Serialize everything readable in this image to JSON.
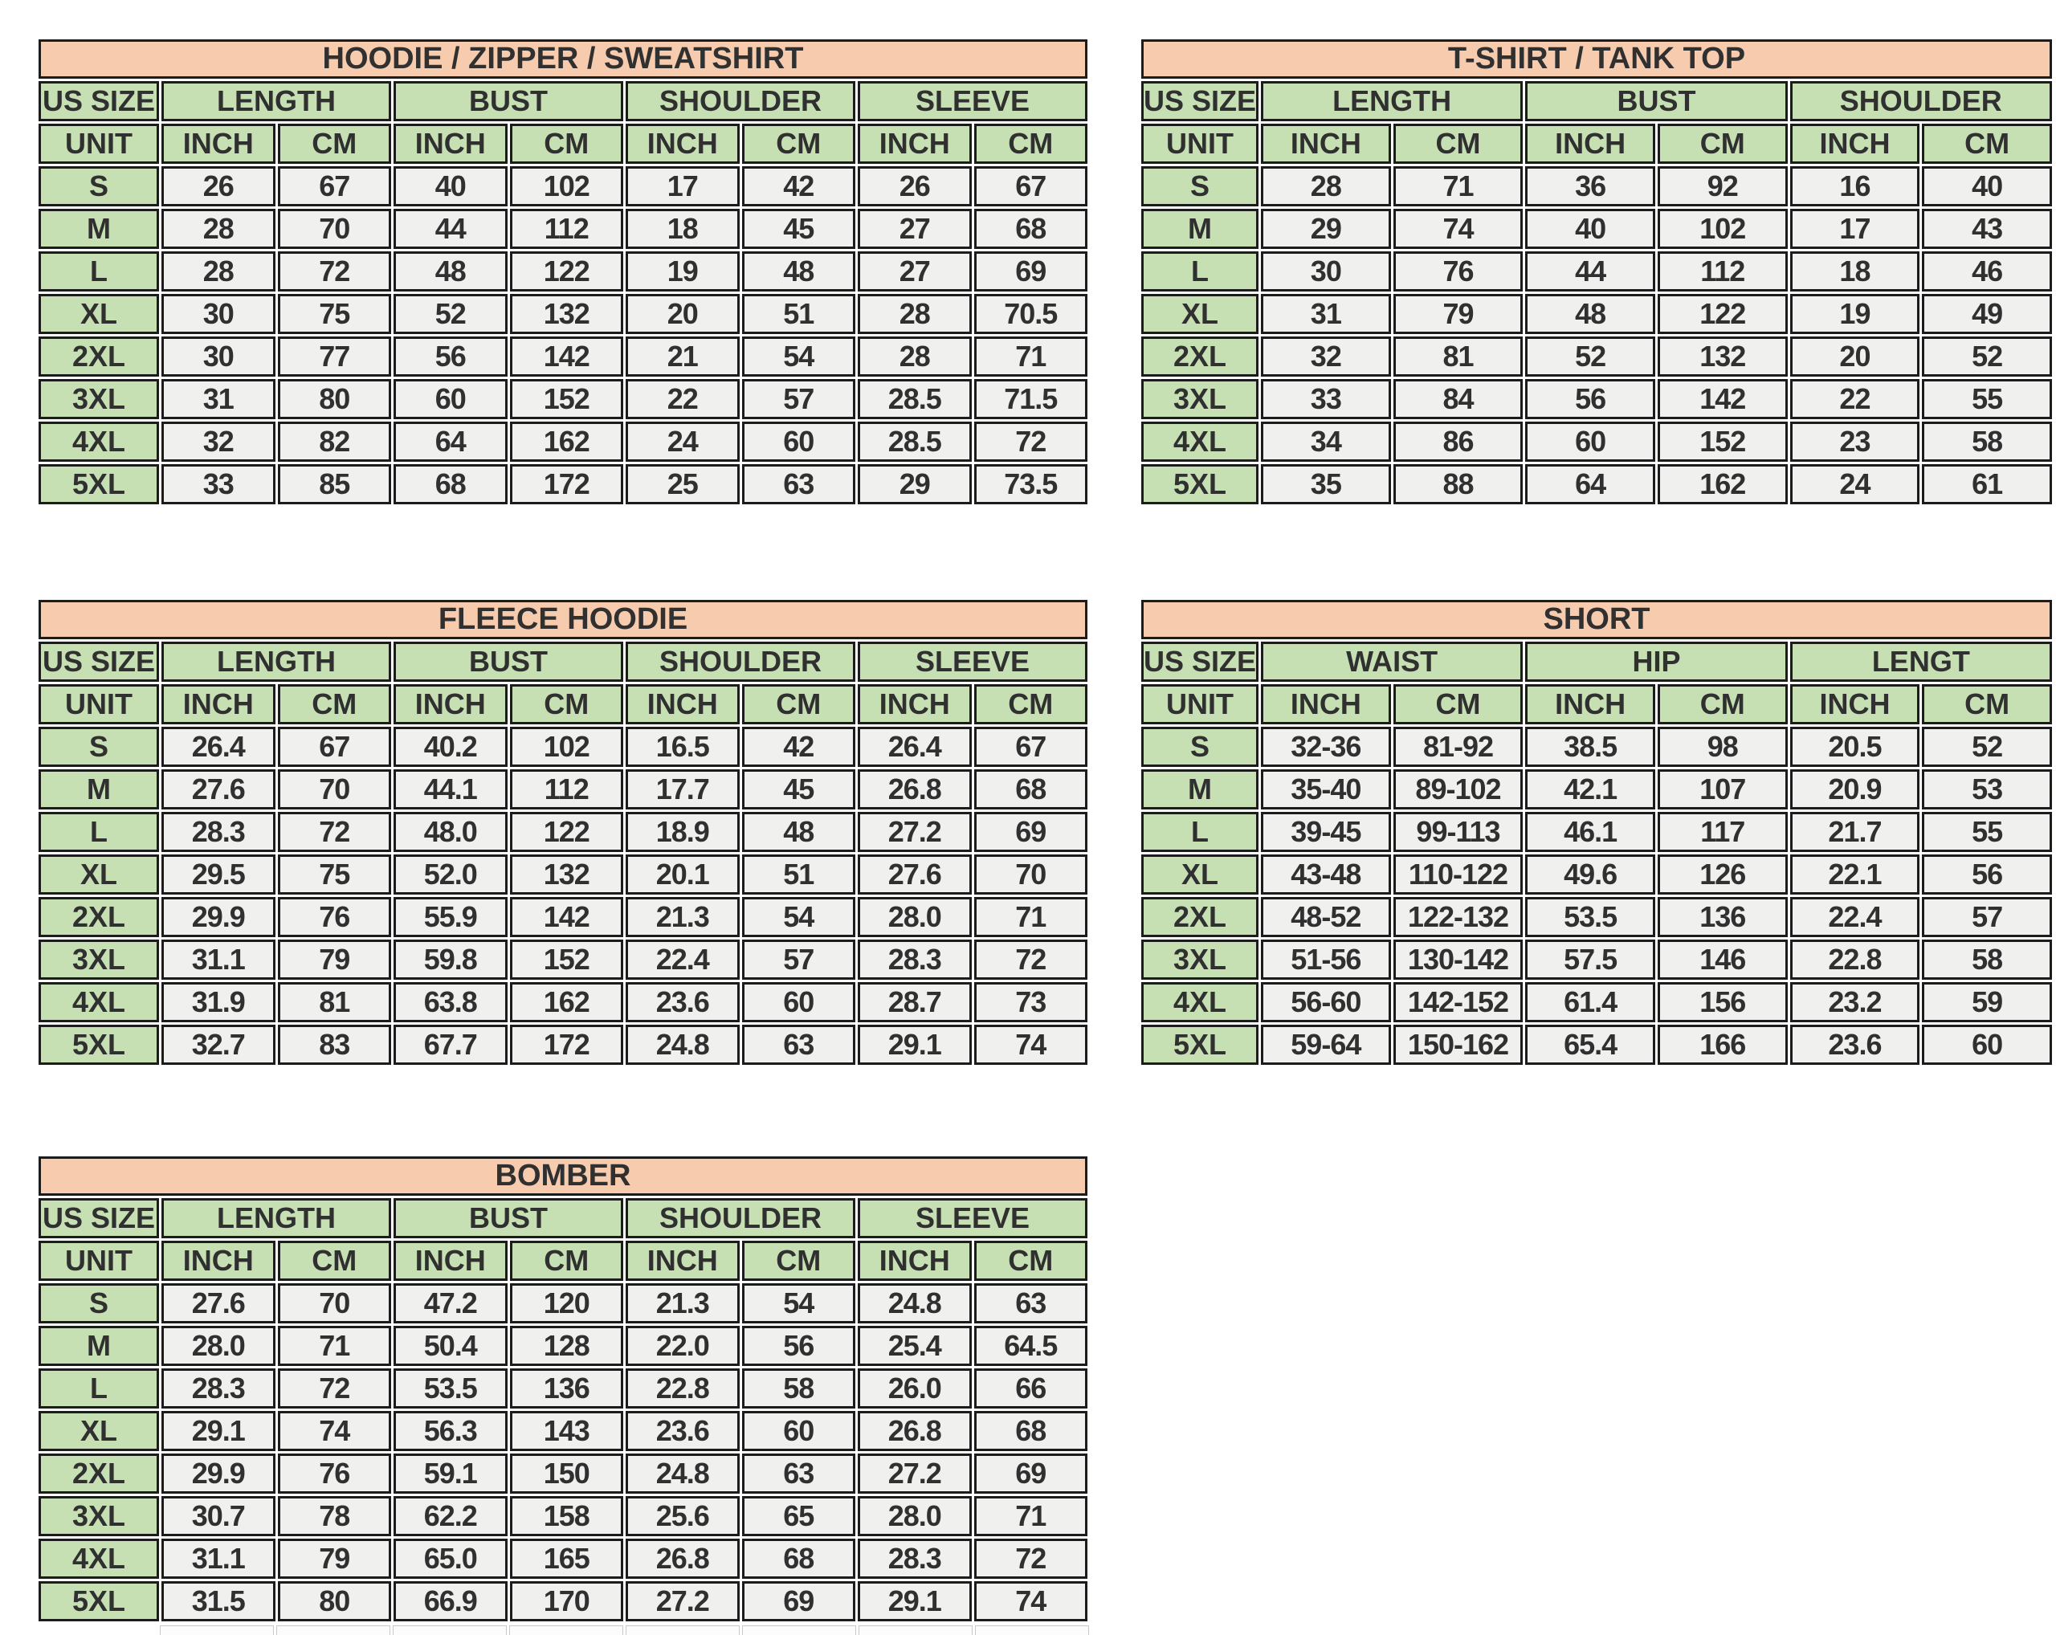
{
  "colors": {
    "title_bg": "#F7CBAD",
    "header_bg": "#C6E0B4",
    "cell_bg": "#F0F0EF",
    "border": "#1C1C1C",
    "text": "#303030",
    "page_bg": "#FFFFFF"
  },
  "tables": [
    {
      "id": "hoodie",
      "title": "HOODIE / ZIPPER / SWEATSHIRT",
      "size_col_header": "US SIZE",
      "unit_label": "UNIT",
      "groups": [
        "LENGTH",
        "BUST",
        "SHOULDER",
        "SLEEVE"
      ],
      "unit_headers": [
        "INCH",
        "CM",
        "INCH",
        "CM",
        "INCH",
        "CM",
        "INCH",
        "CM"
      ],
      "rows": [
        {
          "size": "S",
          "values": [
            "26",
            "67",
            "40",
            "102",
            "17",
            "42",
            "26",
            "67"
          ]
        },
        {
          "size": "M",
          "values": [
            "28",
            "70",
            "44",
            "112",
            "18",
            "45",
            "27",
            "68"
          ]
        },
        {
          "size": "L",
          "values": [
            "28",
            "72",
            "48",
            "122",
            "19",
            "48",
            "27",
            "69"
          ]
        },
        {
          "size": "XL",
          "values": [
            "30",
            "75",
            "52",
            "132",
            "20",
            "51",
            "28",
            "70.5"
          ]
        },
        {
          "size": "2XL",
          "values": [
            "30",
            "77",
            "56",
            "142",
            "21",
            "54",
            "28",
            "71"
          ]
        },
        {
          "size": "3XL",
          "values": [
            "31",
            "80",
            "60",
            "152",
            "22",
            "57",
            "28.5",
            "71.5"
          ]
        },
        {
          "size": "4XL",
          "values": [
            "32",
            "82",
            "64",
            "162",
            "24",
            "60",
            "28.5",
            "72"
          ]
        },
        {
          "size": "5XL",
          "values": [
            "33",
            "85",
            "68",
            "172",
            "25",
            "63",
            "29",
            "73.5"
          ]
        }
      ]
    },
    {
      "id": "tshirt",
      "title": "T-SHIRT / TANK TOP",
      "size_col_header": "US SIZE",
      "unit_label": "UNIT",
      "groups": [
        "LENGTH",
        "BUST",
        "SHOULDER"
      ],
      "unit_headers": [
        "INCH",
        "CM",
        "INCH",
        "CM",
        "INCH",
        "CM"
      ],
      "rows": [
        {
          "size": "S",
          "values": [
            "28",
            "71",
            "36",
            "92",
            "16",
            "40"
          ]
        },
        {
          "size": "M",
          "values": [
            "29",
            "74",
            "40",
            "102",
            "17",
            "43"
          ]
        },
        {
          "size": "L",
          "values": [
            "30",
            "76",
            "44",
            "112",
            "18",
            "46"
          ]
        },
        {
          "size": "XL",
          "values": [
            "31",
            "79",
            "48",
            "122",
            "19",
            "49"
          ]
        },
        {
          "size": "2XL",
          "values": [
            "32",
            "81",
            "52",
            "132",
            "20",
            "52"
          ]
        },
        {
          "size": "3XL",
          "values": [
            "33",
            "84",
            "56",
            "142",
            "22",
            "55"
          ]
        },
        {
          "size": "4XL",
          "values": [
            "34",
            "86",
            "60",
            "152",
            "23",
            "58"
          ]
        },
        {
          "size": "5XL",
          "values": [
            "35",
            "88",
            "64",
            "162",
            "24",
            "61"
          ]
        }
      ]
    },
    {
      "id": "fleece",
      "title": "FLEECE HOODIE",
      "size_col_header": "US SIZE",
      "unit_label": "UNIT",
      "groups": [
        "LENGTH",
        "BUST",
        "SHOULDER",
        "SLEEVE"
      ],
      "unit_headers": [
        "INCH",
        "CM",
        "INCH",
        "CM",
        "INCH",
        "CM",
        "INCH",
        "CM"
      ],
      "rows": [
        {
          "size": "S",
          "values": [
            "26.4",
            "67",
            "40.2",
            "102",
            "16.5",
            "42",
            "26.4",
            "67"
          ]
        },
        {
          "size": "M",
          "values": [
            "27.6",
            "70",
            "44.1",
            "112",
            "17.7",
            "45",
            "26.8",
            "68"
          ]
        },
        {
          "size": "L",
          "values": [
            "28.3",
            "72",
            "48.0",
            "122",
            "18.9",
            "48",
            "27.2",
            "69"
          ]
        },
        {
          "size": "XL",
          "values": [
            "29.5",
            "75",
            "52.0",
            "132",
            "20.1",
            "51",
            "27.6",
            "70"
          ]
        },
        {
          "size": "2XL",
          "values": [
            "29.9",
            "76",
            "55.9",
            "142",
            "21.3",
            "54",
            "28.0",
            "71"
          ]
        },
        {
          "size": "3XL",
          "values": [
            "31.1",
            "79",
            "59.8",
            "152",
            "22.4",
            "57",
            "28.3",
            "72"
          ]
        },
        {
          "size": "4XL",
          "values": [
            "31.9",
            "81",
            "63.8",
            "162",
            "23.6",
            "60",
            "28.7",
            "73"
          ]
        },
        {
          "size": "5XL",
          "values": [
            "32.7",
            "83",
            "67.7",
            "172",
            "24.8",
            "63",
            "29.1",
            "74"
          ]
        }
      ]
    },
    {
      "id": "short",
      "title": "SHORT",
      "size_col_header": "US SIZE",
      "unit_label": "UNIT",
      "groups": [
        "WAIST",
        "HIP",
        "LENGT"
      ],
      "unit_headers": [
        "INCH",
        "CM",
        "INCH",
        "CM",
        "INCH",
        "CM"
      ],
      "rows": [
        {
          "size": "S",
          "values": [
            "32-36",
            "81-92",
            "38.5",
            "98",
            "20.5",
            "52"
          ]
        },
        {
          "size": "M",
          "values": [
            "35-40",
            "89-102",
            "42.1",
            "107",
            "20.9",
            "53"
          ]
        },
        {
          "size": "L",
          "values": [
            "39-45",
            "99-113",
            "46.1",
            "117",
            "21.7",
            "55"
          ]
        },
        {
          "size": "XL",
          "values": [
            "43-48",
            "110-122",
            "49.6",
            "126",
            "22.1",
            "56"
          ]
        },
        {
          "size": "2XL",
          "values": [
            "48-52",
            "122-132",
            "53.5",
            "136",
            "22.4",
            "57"
          ]
        },
        {
          "size": "3XL",
          "values": [
            "51-56",
            "130-142",
            "57.5",
            "146",
            "22.8",
            "58"
          ]
        },
        {
          "size": "4XL",
          "values": [
            "56-60",
            "142-152",
            "61.4",
            "156",
            "23.2",
            "59"
          ]
        },
        {
          "size": "5XL",
          "values": [
            "59-64",
            "150-162",
            "65.4",
            "166",
            "23.6",
            "60"
          ]
        }
      ]
    },
    {
      "id": "bomber",
      "title": "BOMBER",
      "size_col_header": "US SIZE",
      "unit_label": "UNIT",
      "groups": [
        "LENGTH",
        "BUST",
        "SHOULDER",
        "SLEEVE"
      ],
      "unit_headers": [
        "INCH",
        "CM",
        "INCH",
        "CM",
        "INCH",
        "CM",
        "INCH",
        "CM"
      ],
      "rows": [
        {
          "size": "S",
          "values": [
            "27.6",
            "70",
            "47.2",
            "120",
            "21.3",
            "54",
            "24.8",
            "63"
          ]
        },
        {
          "size": "M",
          "values": [
            "28.0",
            "71",
            "50.4",
            "128",
            "22.0",
            "56",
            "25.4",
            "64.5"
          ]
        },
        {
          "size": "L",
          "values": [
            "28.3",
            "72",
            "53.5",
            "136",
            "22.8",
            "58",
            "26.0",
            "66"
          ]
        },
        {
          "size": "XL",
          "values": [
            "29.1",
            "74",
            "56.3",
            "143",
            "23.6",
            "60",
            "26.8",
            "68"
          ]
        },
        {
          "size": "2XL",
          "values": [
            "29.9",
            "76",
            "59.1",
            "150",
            "24.8",
            "63",
            "27.2",
            "69"
          ]
        },
        {
          "size": "3XL",
          "values": [
            "30.7",
            "78",
            "62.2",
            "158",
            "25.6",
            "65",
            "28.0",
            "71"
          ]
        },
        {
          "size": "4XL",
          "values": [
            "31.1",
            "79",
            "65.0",
            "165",
            "26.8",
            "68",
            "28.3",
            "72"
          ]
        },
        {
          "size": "5XL",
          "values": [
            "31.5",
            "80",
            "66.9",
            "170",
            "27.2",
            "69",
            "29.1",
            "74"
          ]
        }
      ]
    }
  ]
}
